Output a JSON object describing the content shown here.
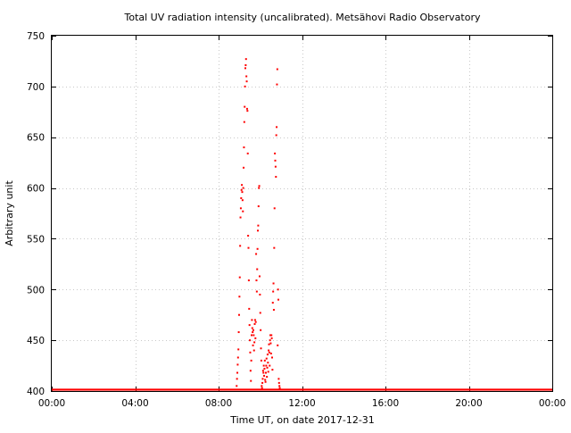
{
  "chart_data": {
    "type": "scatter",
    "title": "Total UV radiation intensity (uncalibrated). Metsähovi Radio Observatory",
    "xlabel": "Time UT, on date 2017-12-31",
    "ylabel": "Arbitrary unit",
    "xlim": [
      "00:00",
      "24:00"
    ],
    "ylim": [
      400,
      750
    ],
    "grid": true,
    "x_ticks": [
      "00:00",
      "04:00",
      "08:00",
      "12:00",
      "16:00",
      "20:00",
      "00:00"
    ],
    "y_ticks": [
      400,
      450,
      500,
      550,
      600,
      650,
      700,
      750
    ],
    "colors": {
      "points": "#ff0000",
      "grid": "#c8c8c8",
      "axes": "#000000"
    },
    "baseline": {
      "from": "00:00",
      "to": "24:00",
      "value": 401
    },
    "series": [
      {
        "points": [
          [
            "08:52",
            405
          ],
          [
            "08:53",
            412
          ],
          [
            "08:54",
            418
          ],
          [
            "08:55",
            426
          ],
          [
            "08:56",
            433
          ],
          [
            "08:57",
            441
          ],
          [
            "08:58",
            458
          ],
          [
            "08:59",
            475
          ],
          [
            "09:00",
            493
          ],
          [
            "09:01",
            512
          ],
          [
            "09:02",
            543
          ],
          [
            "09:03",
            571
          ],
          [
            "09:04",
            580
          ],
          [
            "09:05",
            590
          ],
          [
            "09:06",
            598
          ],
          [
            "09:07",
            603
          ],
          [
            "09:08",
            596
          ],
          [
            "09:09",
            588
          ],
          [
            "09:10",
            577
          ],
          [
            "09:11",
            600
          ],
          [
            "09:12",
            620
          ],
          [
            "09:13",
            640
          ],
          [
            "09:14",
            665
          ],
          [
            "09:15",
            680
          ],
          [
            "09:16",
            700
          ],
          [
            "09:17",
            718
          ],
          [
            "09:18",
            721
          ],
          [
            "09:19",
            727
          ],
          [
            "09:20",
            710
          ],
          [
            "09:21",
            705
          ],
          [
            "09:22",
            678
          ],
          [
            "09:23",
            676
          ],
          [
            "09:24",
            634
          ],
          [
            "09:25",
            553
          ],
          [
            "09:26",
            541
          ],
          [
            "09:27",
            509
          ],
          [
            "09:28",
            481
          ],
          [
            "09:29",
            465
          ],
          [
            "09:30",
            450
          ],
          [
            "09:31",
            438
          ],
          [
            "09:32",
            420
          ],
          [
            "09:33",
            410
          ],
          [
            "09:34",
            430
          ],
          [
            "09:35",
            455
          ],
          [
            "09:36",
            470
          ],
          [
            "09:37",
            462
          ],
          [
            "09:38",
            458
          ],
          [
            "09:39",
            445
          ],
          [
            "09:40",
            460
          ],
          [
            "09:41",
            455
          ],
          [
            "09:42",
            440
          ],
          [
            "09:43",
            448
          ],
          [
            "09:44",
            466
          ],
          [
            "09:45",
            470
          ],
          [
            "09:46",
            452
          ],
          [
            "09:47",
            468
          ],
          [
            "09:48",
            535
          ],
          [
            "09:49",
            509
          ],
          [
            "09:50",
            498
          ],
          [
            "09:51",
            520
          ],
          [
            "09:52",
            540
          ],
          [
            "09:53",
            558
          ],
          [
            "09:54",
            563
          ],
          [
            "09:55",
            582
          ],
          [
            "09:56",
            600
          ],
          [
            "09:57",
            602
          ],
          [
            "09:58",
            513
          ],
          [
            "09:59",
            495
          ],
          [
            "10:00",
            477
          ],
          [
            "10:01",
            460
          ],
          [
            "10:02",
            442
          ],
          [
            "10:03",
            430
          ],
          [
            "10:04",
            405
          ],
          [
            "10:05",
            403
          ],
          [
            "10:06",
            408
          ],
          [
            "10:07",
            412
          ],
          [
            "10:08",
            420
          ],
          [
            "10:09",
            418
          ],
          [
            "10:10",
            425
          ],
          [
            "10:11",
            415
          ],
          [
            "10:12",
            422
          ],
          [
            "10:13",
            430
          ],
          [
            "10:14",
            411
          ],
          [
            "10:15",
            409
          ],
          [
            "10:16",
            418
          ],
          [
            "10:17",
            425
          ],
          [
            "10:18",
            432
          ],
          [
            "10:19",
            414
          ],
          [
            "10:20",
            423
          ],
          [
            "10:21",
            436
          ],
          [
            "10:22",
            428
          ],
          [
            "10:23",
            419
          ],
          [
            "10:24",
            440
          ],
          [
            "10:25",
            446
          ],
          [
            "10:26",
            438
          ],
          [
            "10:27",
            425
          ],
          [
            "10:28",
            450
          ],
          [
            "10:29",
            455
          ],
          [
            "10:30",
            447
          ],
          [
            "10:31",
            437
          ],
          [
            "10:32",
            455
          ],
          [
            "10:33",
            452
          ],
          [
            "10:34",
            433
          ],
          [
            "10:35",
            421
          ],
          [
            "10:36",
            487
          ],
          [
            "10:37",
            498
          ],
          [
            "10:38",
            506
          ],
          [
            "10:39",
            480
          ],
          [
            "10:40",
            541
          ],
          [
            "10:41",
            580
          ],
          [
            "10:42",
            634
          ],
          [
            "10:43",
            627
          ],
          [
            "10:44",
            621
          ],
          [
            "10:45",
            611
          ],
          [
            "10:46",
            652
          ],
          [
            "10:47",
            660
          ],
          [
            "10:48",
            702
          ],
          [
            "10:49",
            717
          ],
          [
            "10:50",
            445
          ],
          [
            "10:51",
            500
          ],
          [
            "10:52",
            490
          ],
          [
            "10:53",
            412
          ],
          [
            "10:54",
            408
          ],
          [
            "10:55",
            405
          ],
          [
            "10:56",
            403
          ]
        ]
      }
    ]
  }
}
